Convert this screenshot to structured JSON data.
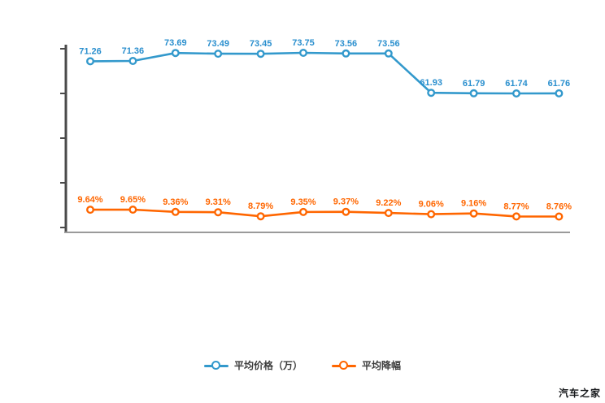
{
  "watermark": {
    "text": "汽车之家"
  },
  "chart_data": {
    "type": "line",
    "title": "",
    "legend_position": "bottom",
    "grid": false,
    "axis_color": "#4a4a4a",
    "x_axis": {
      "tick_labels_visible": false,
      "point_count": 12
    },
    "y_axis": {
      "tick_labels_visible": false,
      "tick_count": 5
    },
    "series": [
      {
        "name": "平均价格（万）",
        "color": "#3399cc",
        "label_color": "#2a8fce",
        "values": [
          71.26,
          71.36,
          73.69,
          73.49,
          73.45,
          73.75,
          73.56,
          73.56,
          61.93,
          61.79,
          61.74,
          61.76
        ],
        "labels": [
          "71.26",
          "71.36",
          "73.69",
          "73.49",
          "73.45",
          "73.75",
          "73.56",
          "73.56",
          "61.93",
          "61.79",
          "61.74",
          "61.76"
        ]
      },
      {
        "name": "平均降幅",
        "color": "#ff6600",
        "label_color": "#ff6600",
        "values": [
          9.64,
          9.65,
          9.36,
          9.31,
          8.79,
          9.35,
          9.37,
          9.22,
          9.06,
          9.16,
          8.77,
          8.76
        ],
        "labels": [
          "9.64%",
          "9.65%",
          "9.36%",
          "9.31%",
          "8.79%",
          "9.35%",
          "9.37%",
          "9.22%",
          "9.06%",
          "9.16%",
          "8.77%",
          "8.76%"
        ]
      }
    ]
  }
}
